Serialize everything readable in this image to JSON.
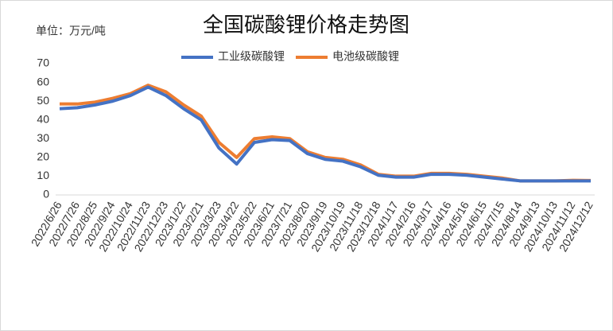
{
  "chart_data": {
    "type": "line",
    "title": "全国碳酸锂价格走势图",
    "unit_label": "单位：万元/吨",
    "categories": [
      "2022/6/26",
      "2022/7/26",
      "2022/8/25",
      "2022/9/24",
      "2022/10/24",
      "2022/11/23",
      "2022/12/23",
      "2023/1/22",
      "2023/2/21",
      "2023/3/23",
      "2023/4/22",
      "2023/5/22",
      "2023/6/21",
      "2023/7/21",
      "2023/8/20",
      "2023/9/19",
      "2023/10/19",
      "2023/11/18",
      "2023/12/18",
      "2024/1/17",
      "2024/2/16",
      "2024/3/17",
      "2024/4/16",
      "2024/5/16",
      "2024/6/15",
      "2024/7/15",
      "2024/8/14",
      "2024/9/13",
      "2024/10/13",
      "2024/11/12",
      "2024/12/12"
    ],
    "series": [
      {
        "name": "工业级碳酸锂",
        "color": "#4472c4",
        "values": [
          46,
          46.5,
          48,
          50,
          53,
          57.5,
          53,
          46,
          40,
          25,
          16.5,
          28,
          29.5,
          29,
          22,
          19,
          18,
          15,
          10.5,
          9.5,
          9.5,
          11,
          11,
          10.5,
          9.5,
          8.5,
          7.5,
          7.5,
          7.5,
          7.5,
          7.5
        ]
      },
      {
        "name": "电池级碳酸锂",
        "color": "#ed7d31",
        "values": [
          48.5,
          48.5,
          49.5,
          51.5,
          54,
          58.5,
          55,
          48,
          42,
          28,
          20,
          30,
          31,
          30,
          23,
          20,
          19,
          16,
          11,
          10,
          10,
          11.5,
          11.5,
          11,
          10,
          9,
          7.5,
          7.5,
          7.5,
          7.8,
          7.7
        ]
      }
    ],
    "ylim": [
      0,
      70
    ],
    "yticks": [
      0,
      10,
      20,
      30,
      40,
      50,
      60,
      70
    ],
    "grid": false,
    "legend": "top"
  }
}
